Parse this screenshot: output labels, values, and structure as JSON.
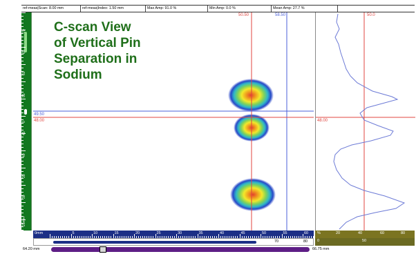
{
  "title_lines": [
    "C-scan View",
    "of Vertical Pin",
    "Separation in",
    "Sodium"
  ],
  "readouts": [
    {
      "label": "ref-meas|Scan: 8.00 mm"
    },
    {
      "label": "ref-meas|Index: 1.50 mm"
    },
    {
      "label": "Max Amp: 91.0 %"
    },
    {
      "label": "Min Amp: 0.0 %"
    },
    {
      "label": "Mean Amp: 27.7 %"
    }
  ],
  "cursors": {
    "red_vertical_value": "50.50",
    "blue_vertical_value": "58.50",
    "blue_horizontal_value": "49.50",
    "red_horizontal_value": "48.00",
    "profile_red_horizontal_value": "48.00",
    "profile_red_vertical_value": "50.0"
  },
  "vertical_axis": {
    "labels": [
      "70",
      "65",
      "60",
      "55",
      "50",
      "45",
      "40",
      "35",
      "30",
      "25mm"
    ],
    "marker": "0"
  },
  "horizontal_axis": {
    "labels": [
      "0mm",
      "5",
      "10",
      "15",
      "20",
      "25",
      "30",
      "35",
      "40",
      "45",
      "50",
      "55",
      "60"
    ],
    "extra_labels": [
      "70",
      "80"
    ]
  },
  "profile_axis": {
    "labels": [
      "%",
      "20",
      "40",
      "60",
      "80"
    ],
    "bar_labels": [
      "0",
      "50"
    ]
  },
  "scan_range": {
    "start": "64.20 mm",
    "end": "66.75 mm"
  },
  "colors": {
    "red_cursor": "#e0453f",
    "blue_cursor": "#4a5fd8",
    "profile_line": "#6c7ad6",
    "ruler_green": "#12771f",
    "ruler_blue": "#1c2f86",
    "ruler_olive": "#7b7421",
    "scanbar": "#5e1e86",
    "title_green": "#1f6f1a"
  },
  "indications": [
    {
      "name": "upper-pin-echo"
    },
    {
      "name": "middle-pin-echo"
    },
    {
      "name": "lower-pin-echo"
    }
  ]
}
